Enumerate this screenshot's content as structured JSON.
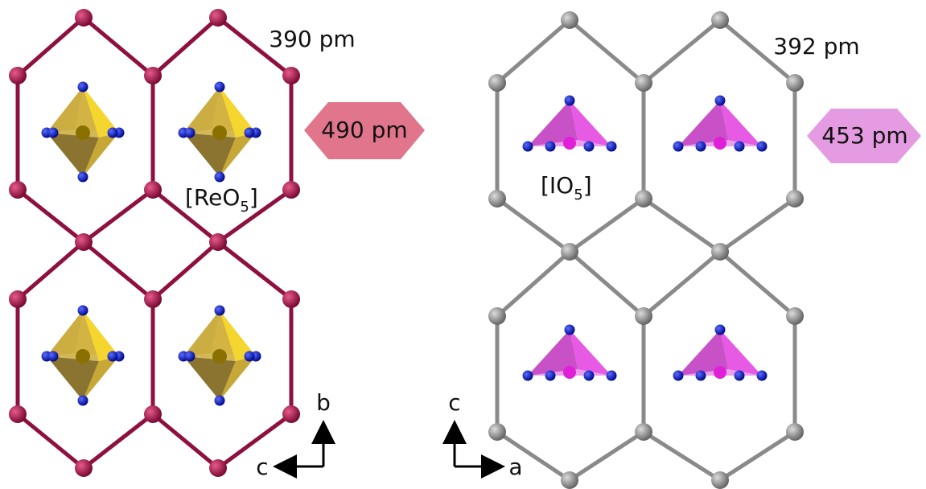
{
  "left_panel": {
    "bond_length": "390 pm",
    "cell_width": "490 pm",
    "polyhedron": {
      "prefix": "[ReO",
      "subscript": "5",
      "suffix": "]"
    },
    "axes": {
      "vertical": "b",
      "horizontal": "c"
    }
  },
  "right_panel": {
    "bond_length": "392 pm",
    "cell_width": "453 pm",
    "polyhedron": {
      "prefix": "[IO",
      "subscript": "5",
      "suffix": "]"
    },
    "axes": {
      "vertical": "c",
      "horizontal": "a"
    }
  }
}
